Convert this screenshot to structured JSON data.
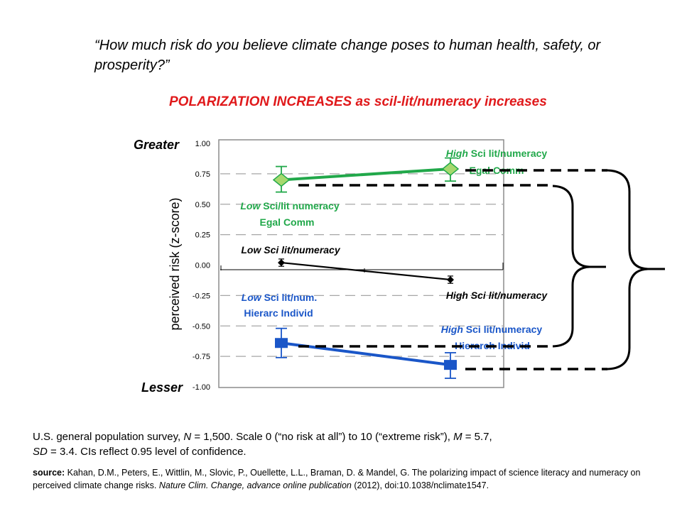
{
  "question": "“How much risk do you believe climate change poses to human health, safety, or prosperity?”",
  "subtitle": "POLARIZATION INCREASES as scil-lit/numeracy increases",
  "chart_data": {
    "type": "line",
    "ylabel": "perceived risk (z-score)",
    "ylim": [
      -1.0,
      1.0
    ],
    "yticks": [
      "1.00",
      "0.75",
      "0.50",
      "0.25",
      "0.00",
      "-0.25",
      "-0.50",
      "-0.75",
      "-1.00"
    ],
    "ytick_values": [
      1.0,
      0.75,
      0.5,
      0.25,
      0.0,
      -0.25,
      -0.5,
      -0.75,
      -1.0
    ],
    "greater_label": "Greater",
    "lesser_label": "Lesser",
    "x_positions": [
      "Low",
      "High"
    ],
    "series": [
      {
        "key": "egal",
        "color": "#21a84a",
        "values": [
          0.7,
          0.79
        ],
        "ci_low": [
          0.6,
          0.69
        ],
        "ci_high": [
          0.81,
          0.88
        ],
        "marker": "diamond-filled"
      },
      {
        "key": "overall",
        "color": "#000000",
        "values": [
          0.02,
          -0.12
        ],
        "ci_low": [
          -0.01,
          -0.15
        ],
        "ci_high": [
          0.05,
          -0.09
        ],
        "marker": "diamond-small"
      },
      {
        "key": "hier",
        "color": "#1a56c8",
        "values": [
          -0.64,
          -0.82
        ],
        "ci_low": [
          -0.76,
          -0.93
        ],
        "ci_high": [
          -0.52,
          -0.72
        ],
        "marker": "square"
      }
    ],
    "annotations": {
      "egal_low": {
        "em": "Low",
        "rest": " Sci/lit numeracy",
        "line2": "Egal Comm"
      },
      "egal_high": {
        "em": "High",
        "rest": " Sci lit/numeracy",
        "line2": "Egal Comm"
      },
      "overall_low": "Low Sci lit/numeracy",
      "overall_high": "High Sci lit/numeracy",
      "hier_low": {
        "em": "Low",
        "rest": " Sci lit/num.",
        "line2": "Hierarc Individ"
      },
      "hier_high": {
        "em": "High",
        "rest": " Sci lit/numeracy",
        "line2": "Hierarch Individ"
      }
    }
  },
  "note": {
    "part1": "U.S. general population survey, ",
    "n_label": "N",
    "part2": " = 1,500.  Scale 0 (“no risk at all”) to 10 (“extreme risk”), ",
    "m_label": "M",
    "part3": " = 5.7,",
    "sd_label": "SD",
    "part4": " = 3.4. CIs reflect 0.95 level of confidence."
  },
  "source": {
    "label": "source:",
    "text1": " Kahan, D.M., Peters, E., Wittlin, M., Slovic, P., Ouellette, L.L., Braman, D. & Mandel, G. The polarizing impact of science literacy and numeracy on perceived climate change risks. ",
    "journal": "Nature Clim. Change,  advance online publication",
    "text2": " (2012), doi:10.1038/nclimate1547."
  }
}
